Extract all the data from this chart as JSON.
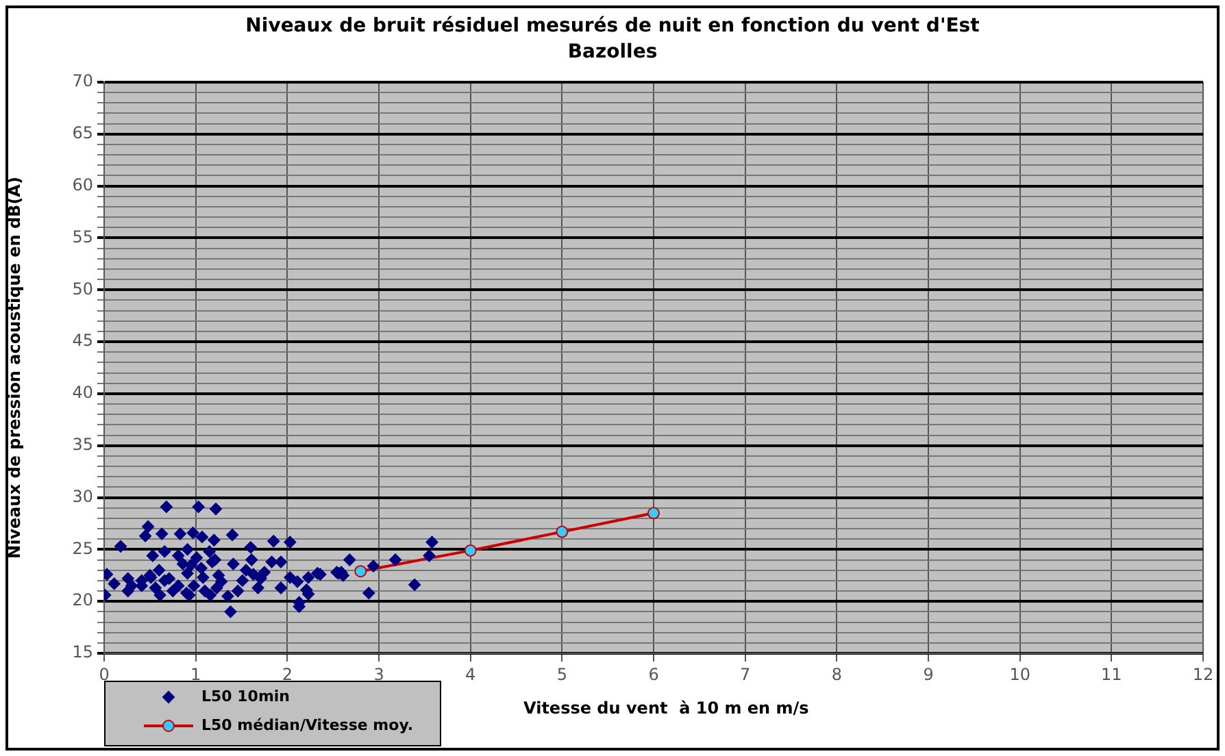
{
  "chart_data": {
    "type": "scatter",
    "title": "Niveaux de bruit  résiduel mesurés de nuit en fonction du vent d'Est",
    "subtitle": "Bazolles",
    "xlabel": "Vitesse du vent  à 10 m en m/s",
    "ylabel": "Niveaux de pression acoustique en dB(A)",
    "xlim": [
      0,
      12
    ],
    "xticks": [
      0,
      1,
      2,
      3,
      4,
      5,
      6,
      7,
      8,
      9,
      10,
      11,
      12
    ],
    "ylim": [
      15,
      70
    ],
    "yticks": [
      15,
      {
        "value": 16,
        "label": null
      },
      {
        "value": 17,
        "label": null
      },
      {
        "value": 18,
        "label": null
      },
      {
        "value": 19,
        "label": null
      },
      20,
      {
        "value": 21,
        "label": null
      },
      {
        "value": 22,
        "label": null
      },
      {
        "value": 23,
        "label": null
      },
      {
        "value": 24,
        "label": null
      },
      25,
      {
        "value": 26,
        "label": null
      },
      {
        "value": 27,
        "label": null
      },
      {
        "value": 28,
        "label": null
      },
      {
        "value": 29,
        "label": null
      },
      30,
      {
        "value": 31,
        "label": null
      },
      {
        "value": 32,
        "label": null
      },
      {
        "value": 33,
        "label": null
      },
      {
        "value": 34,
        "label": null
      },
      35,
      {
        "value": 36,
        "label": null
      },
      {
        "value": 37,
        "label": null
      },
      {
        "value": 38,
        "label": null
      },
      {
        "value": 39,
        "label": null
      },
      40,
      {
        "value": 41,
        "label": null
      },
      {
        "value": 42,
        "label": null
      },
      {
        "value": 43,
        "label": null
      },
      {
        "value": 44,
        "label": null
      },
      45,
      {
        "value": 46,
        "label": null
      },
      {
        "value": 47,
        "label": null
      },
      {
        "value": 48,
        "label": null
      },
      {
        "value": 49,
        "label": null
      },
      50,
      {
        "value": 51,
        "label": null
      },
      {
        "value": 52,
        "label": null
      },
      {
        "value": 53,
        "label": null
      },
      {
        "value": 54,
        "label": null
      },
      55,
      {
        "value": 56,
        "label": null
      },
      {
        "value": 57,
        "label": null
      },
      {
        "value": 58,
        "label": null
      },
      {
        "value": 59,
        "label": null
      },
      60,
      {
        "value": 61,
        "label": null
      },
      {
        "value": 62,
        "label": null
      },
      {
        "value": 63,
        "label": null
      },
      {
        "value": 64,
        "label": null
      },
      65,
      {
        "value": 66,
        "label": null
      },
      {
        "value": 67,
        "label": null
      },
      {
        "value": 68,
        "label": null
      },
      {
        "value": 69,
        "label": null
      },
      70
    ],
    "grid": true,
    "legend": "bottom left",
    "series": [
      {
        "name": "L50 10min",
        "type": "scatter",
        "color": "#000080",
        "marker": "diamond",
        "x": [
          0.68,
          1.03,
          1.22,
          0.48,
          0.18,
          0.45,
          0.63,
          0.83,
          0.97,
          1.07,
          1.2,
          1.4,
          1.6,
          1.85,
          2.03,
          1.83,
          1.93,
          0.53,
          0.66,
          0.91,
          0.81,
          1.01,
          1.21,
          1.41,
          1.61,
          0.03,
          0.01,
          0.11,
          0.26,
          0.26,
          0.41,
          0.51,
          0.56,
          0.61,
          0.71,
          0.81,
          0.91,
          0.93,
          0.98,
          1.08,
          1.16,
          1.23,
          1.28,
          1.38,
          1.46,
          1.51,
          1.63,
          1.68,
          1.71,
          1.93,
          2.03,
          2.11,
          2.13,
          2.21,
          2.23,
          2.33,
          2.56,
          2.68,
          2.61,
          1.18,
          0.86,
          1.06,
          0.66,
          0.41,
          3.58,
          3.55,
          3.18,
          2.94,
          3.39,
          2.89,
          2.54,
          2.59,
          2.13,
          2.36,
          2.23,
          0.3,
          0.5,
          0.75,
          0.9,
          1.1,
          1.25,
          1.35,
          1.55,
          1.75,
          0.95,
          1.15,
          0.6
        ],
        "values": [
          29.1,
          29.1,
          28.9,
          27.2,
          25.3,
          26.3,
          26.5,
          26.5,
          26.6,
          26.2,
          25.9,
          26.4,
          25.2,
          25.8,
          25.7,
          23.8,
          23.8,
          24.4,
          24.8,
          25.0,
          24.4,
          24.2,
          24.0,
          23.6,
          24.0,
          22.6,
          20.6,
          21.7,
          22.2,
          21.0,
          21.5,
          22.3,
          21.3,
          20.6,
          22.2,
          21.5,
          22.7,
          20.6,
          21.5,
          22.3,
          20.6,
          21.3,
          21.9,
          19.0,
          21.0,
          22.0,
          22.6,
          21.3,
          22.2,
          21.3,
          22.3,
          21.9,
          19.9,
          21.1,
          22.3,
          22.7,
          22.7,
          24.0,
          22.5,
          23.8,
          23.6,
          23.2,
          22.0,
          22.0,
          25.7,
          24.4,
          24.0,
          23.4,
          21.6,
          20.8,
          22.8,
          22.8,
          19.5,
          22.6,
          20.7,
          21.5,
          22.5,
          21.0,
          20.8,
          21.0,
          22.5,
          20.5,
          23.0,
          22.8,
          23.5,
          24.8,
          23.0
        ]
      },
      {
        "name": "L50 médian/Vitesse moy.",
        "type": "line",
        "color": "#cc0000",
        "marker": "circle",
        "line_style": "solid",
        "x": [
          2.8,
          4,
          5,
          6
        ],
        "values": [
          22.9,
          24.9,
          26.7,
          28.5
        ]
      }
    ]
  }
}
